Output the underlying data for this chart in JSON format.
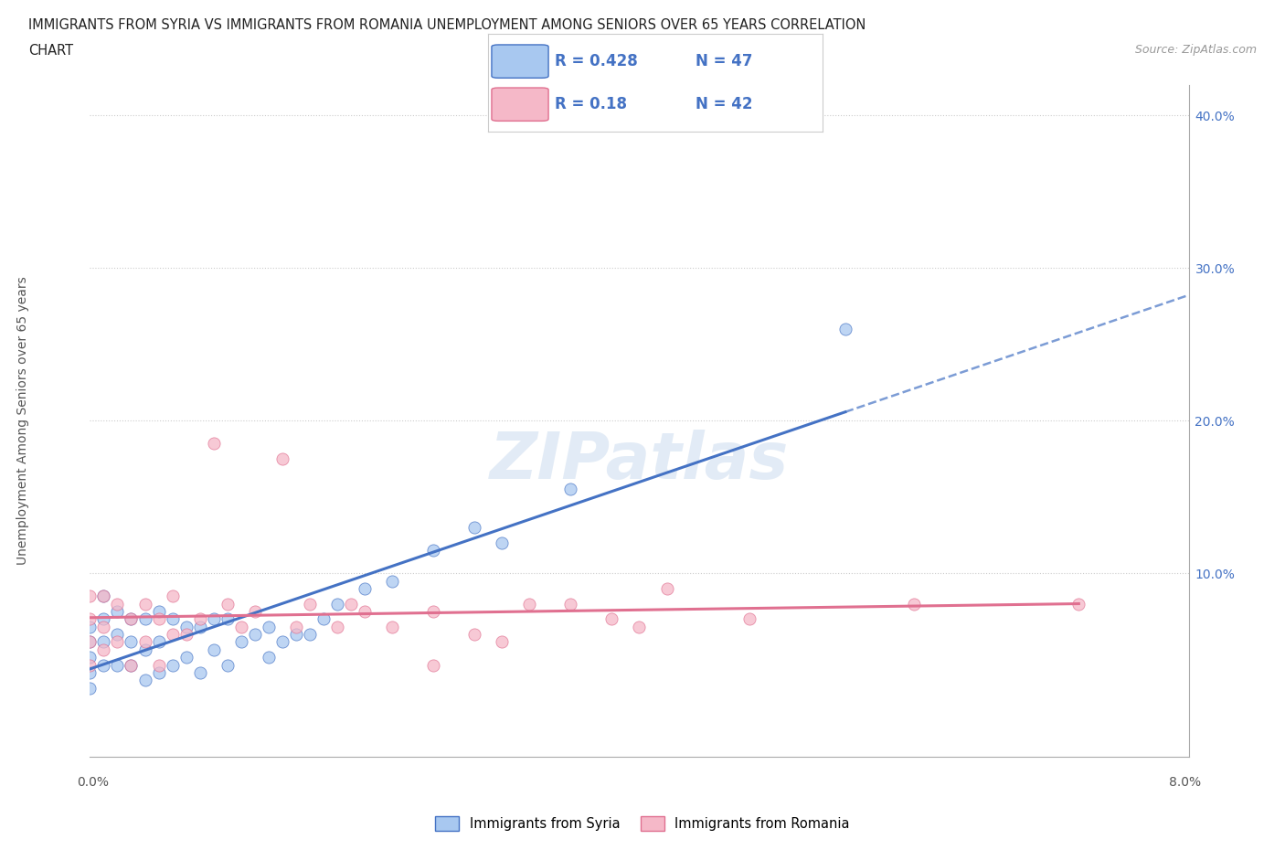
{
  "title_line1": "IMMIGRANTS FROM SYRIA VS IMMIGRANTS FROM ROMANIA UNEMPLOYMENT AMONG SENIORS OVER 65 YEARS CORRELATION",
  "title_line2": "CHART",
  "source_text": "Source: ZipAtlas.com",
  "ylabel": "Unemployment Among Seniors over 65 years",
  "xmin": 0.0,
  "xmax": 0.08,
  "ymin": -0.02,
  "ymax": 0.42,
  "syria_R": 0.428,
  "syria_N": 47,
  "romania_R": 0.18,
  "romania_N": 42,
  "syria_color": "#a8c8f0",
  "romania_color": "#f5b8c8",
  "syria_line_color": "#4472c4",
  "romania_line_color": "#e07090",
  "syria_x": [
    0.0,
    0.0,
    0.0,
    0.0,
    0.0,
    0.001,
    0.001,
    0.001,
    0.001,
    0.002,
    0.002,
    0.002,
    0.003,
    0.003,
    0.003,
    0.004,
    0.004,
    0.004,
    0.005,
    0.005,
    0.005,
    0.006,
    0.006,
    0.007,
    0.007,
    0.008,
    0.008,
    0.009,
    0.009,
    0.01,
    0.01,
    0.011,
    0.012,
    0.013,
    0.013,
    0.014,
    0.015,
    0.016,
    0.017,
    0.018,
    0.02,
    0.022,
    0.025,
    0.028,
    0.03,
    0.035,
    0.055
  ],
  "syria_y": [
    0.025,
    0.035,
    0.045,
    0.055,
    0.065,
    0.04,
    0.055,
    0.07,
    0.085,
    0.04,
    0.06,
    0.075,
    0.04,
    0.055,
    0.07,
    0.03,
    0.05,
    0.07,
    0.035,
    0.055,
    0.075,
    0.04,
    0.07,
    0.045,
    0.065,
    0.035,
    0.065,
    0.05,
    0.07,
    0.04,
    0.07,
    0.055,
    0.06,
    0.045,
    0.065,
    0.055,
    0.06,
    0.06,
    0.07,
    0.08,
    0.09,
    0.095,
    0.115,
    0.13,
    0.12,
    0.155,
    0.26
  ],
  "romania_x": [
    0.0,
    0.0,
    0.0,
    0.0,
    0.001,
    0.001,
    0.001,
    0.002,
    0.002,
    0.003,
    0.003,
    0.004,
    0.004,
    0.005,
    0.005,
    0.006,
    0.006,
    0.007,
    0.008,
    0.009,
    0.01,
    0.011,
    0.012,
    0.014,
    0.015,
    0.016,
    0.018,
    0.019,
    0.02,
    0.022,
    0.025,
    0.025,
    0.028,
    0.03,
    0.032,
    0.035,
    0.038,
    0.04,
    0.042,
    0.048,
    0.06,
    0.072
  ],
  "romania_y": [
    0.04,
    0.055,
    0.07,
    0.085,
    0.05,
    0.065,
    0.085,
    0.055,
    0.08,
    0.04,
    0.07,
    0.055,
    0.08,
    0.04,
    0.07,
    0.06,
    0.085,
    0.06,
    0.07,
    0.185,
    0.08,
    0.065,
    0.075,
    0.175,
    0.065,
    0.08,
    0.065,
    0.08,
    0.075,
    0.065,
    0.04,
    0.075,
    0.06,
    0.055,
    0.08,
    0.08,
    0.07,
    0.065,
    0.09,
    0.07,
    0.08,
    0.08
  ],
  "watermark_text": "ZIPatlas",
  "ytick_vals": [
    0.1,
    0.2,
    0.3,
    0.4
  ],
  "ytick_labels": [
    "10.0%",
    "20.0%",
    "30.0%",
    "40.0%"
  ],
  "legend_syria": "Immigrants from Syria",
  "legend_romania": "Immigrants from Romania"
}
